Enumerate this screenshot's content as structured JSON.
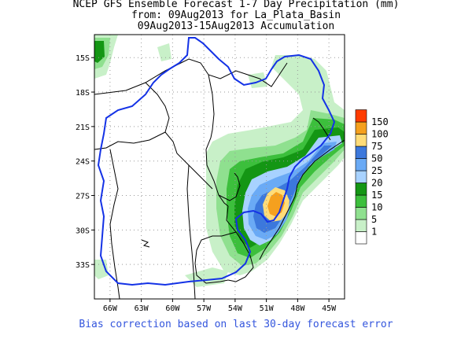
{
  "title": {
    "line1": "NCEP GFS Ensemble Forecast 1-7 Day Precipitation (mm)",
    "line2": "from: 09Aug2013   for La_Plata_Basin",
    "line3": "09Aug2013-15Aug2013 Accumulation"
  },
  "footnote": "Bias correction based on last 30-day forecast error",
  "map": {
    "lon_range": [
      -67.5,
      -43.5
    ],
    "lat_range": [
      -36,
      -13
    ],
    "lat_ticks": [
      {
        "value": -15,
        "label": "15S"
      },
      {
        "value": -18,
        "label": "18S"
      },
      {
        "value": -21,
        "label": "21S"
      },
      {
        "value": -24,
        "label": "24S"
      },
      {
        "value": -27,
        "label": "27S"
      },
      {
        "value": -30,
        "label": "30S"
      },
      {
        "value": -33,
        "label": "33S"
      }
    ],
    "lon_ticks": [
      {
        "value": -66,
        "label": "66W"
      },
      {
        "value": -63,
        "label": "63W"
      },
      {
        "value": -60,
        "label": "60W"
      },
      {
        "value": -57,
        "label": "57W"
      },
      {
        "value": -54,
        "label": "54W"
      },
      {
        "value": -51,
        "label": "51W"
      },
      {
        "value": -48,
        "label": "48W"
      },
      {
        "value": -45,
        "label": "45W"
      }
    ],
    "gridlines": true
  },
  "legend": {
    "levels": [
      {
        "label": "1",
        "color": "#ffffff"
      },
      {
        "label": "5",
        "color": "#c8f0c8"
      },
      {
        "label": "10",
        "color": "#8fe08f"
      },
      {
        "label": "15",
        "color": "#3cbf3c"
      },
      {
        "label": "20",
        "color": "#149614"
      },
      {
        "label": "25",
        "color": "#a8d2ff"
      },
      {
        "label": "50",
        "color": "#6aaaf5"
      },
      {
        "label": "75",
        "color": "#3c78dc"
      },
      {
        "label": "100",
        "color": "#ffdc78"
      },
      {
        "label": "150",
        "color": "#f5a01e"
      },
      {
        "label": "",
        "color": "#ff3c00"
      }
    ]
  },
  "colors": {
    "basin_boundary": "#1432e6",
    "borders": "#000000",
    "grid": "#999999"
  }
}
